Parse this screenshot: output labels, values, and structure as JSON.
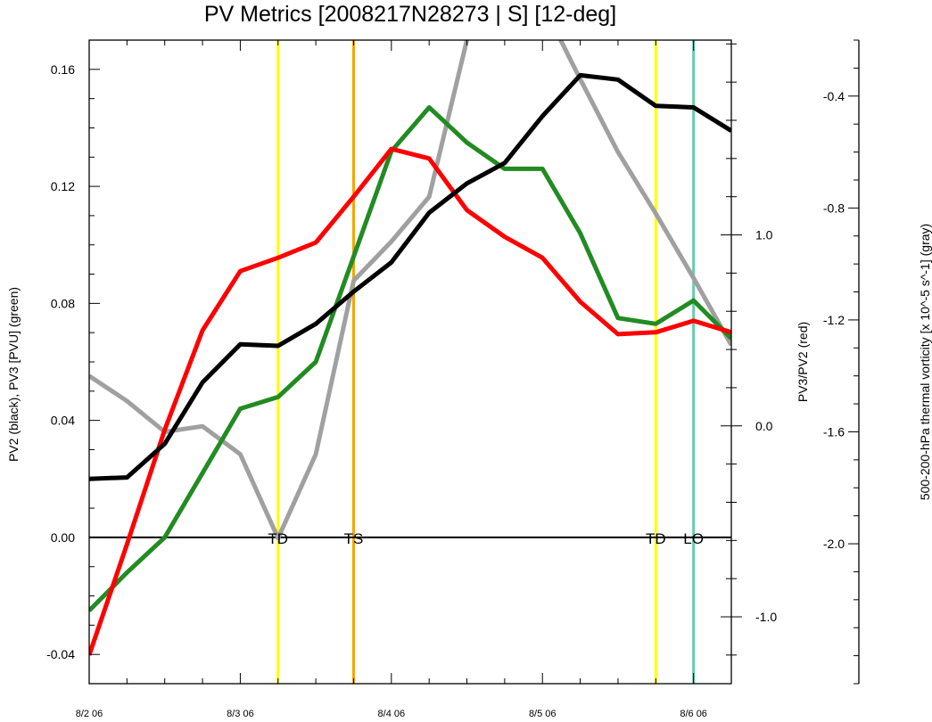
{
  "chart_data": {
    "type": "line",
    "title": "PV Metrics [2008217N28273 | S] [12-deg]",
    "x_labels": [
      "8/2 06",
      "8/3 06",
      "8/4 06",
      "8/5 06",
      "8/6 06"
    ],
    "x_unit": "days",
    "xlim": [
      0,
      4.25
    ],
    "x": [
      0,
      0.25,
      0.5,
      0.75,
      1.0,
      1.25,
      1.5,
      1.75,
      2.0,
      2.25,
      2.5,
      2.75,
      3.0,
      3.25,
      3.5,
      3.75,
      4.0,
      4.25
    ],
    "axes": {
      "left": {
        "label": "PV2 (black), PV3 [PVU] (green)",
        "ylim": [
          -0.05,
          0.17
        ],
        "ticks": [
          -0.04,
          0.0,
          0.04,
          0.08,
          0.12,
          0.16
        ],
        "tick_labels": [
          "-0.04",
          "0.00",
          "0.04",
          "0.08",
          "0.12",
          "0.16"
        ]
      },
      "right": {
        "label": "PV3/PV2 (red)",
        "ylim": [
          -1.35,
          2.02
        ],
        "ticks": [
          -1.0,
          0.0,
          1.0
        ],
        "tick_labels": [
          "-1.0",
          "0.0",
          "1.0"
        ]
      },
      "far_right": {
        "label": "500-200-hPa thermal vorticity [x 10^-5 s^-1] (gray)",
        "ylim": [
          -2.5,
          -0.2
        ],
        "ticks": [
          -2.0,
          -1.6,
          -1.2,
          -0.8,
          -0.4
        ],
        "tick_labels": [
          "-2.0",
          "-1.6",
          "-1.2",
          "-0.8",
          "-0.4"
        ]
      }
    },
    "series": [
      {
        "name": "PV2 (black)",
        "color": "#000000",
        "axis": "left",
        "values": [
          0.02,
          0.0205,
          0.032,
          0.053,
          0.066,
          0.0655,
          0.073,
          0.084,
          0.094,
          0.111,
          0.121,
          0.128,
          0.144,
          0.158,
          0.1565,
          0.1475,
          0.147,
          0.139
        ]
      },
      {
        "name": "PV3 (green)",
        "color": "#228b22",
        "axis": "left",
        "values": [
          -0.025,
          -0.012,
          0.0,
          0.022,
          0.044,
          0.048,
          0.06,
          0.096,
          0.132,
          0.147,
          0.135,
          0.126,
          0.126,
          0.104,
          0.075,
          0.073,
          0.081,
          0.068
        ]
      },
      {
        "name": "PV3/PV2 (red)",
        "color": "#ff0000",
        "axis": "right",
        "values": [
          -1.2,
          -0.62,
          -0.02,
          0.5,
          0.81,
          0.88,
          0.96,
          1.2,
          1.45,
          1.4,
          1.13,
          0.99,
          0.88,
          0.65,
          0.48,
          0.49,
          0.55,
          0.49
        ]
      },
      {
        "name": "thermal vorticity (gray)",
        "color": "#a0a0a0",
        "axis": "far_right",
        "values": [
          -1.4,
          -1.49,
          -1.6,
          -1.58,
          -1.68,
          -1.98,
          -1.68,
          -1.06,
          -0.92,
          -0.76,
          -0.2,
          0.04,
          -0.07,
          -0.34,
          -0.6,
          -0.82,
          -1.05,
          -1.29
        ]
      }
    ],
    "zero_line": {
      "axis": "left",
      "value": 0.0,
      "color": "#000000"
    },
    "events": [
      {
        "label": "TD",
        "x": 1.25,
        "color": "#ffff00"
      },
      {
        "label": "TS",
        "x": 1.75,
        "color": "#f5a300"
      },
      {
        "label": "TD",
        "x": 3.75,
        "color": "#ffff00"
      },
      {
        "label": "LO",
        "x": 4.0,
        "color": "#66ccb0"
      }
    ]
  }
}
